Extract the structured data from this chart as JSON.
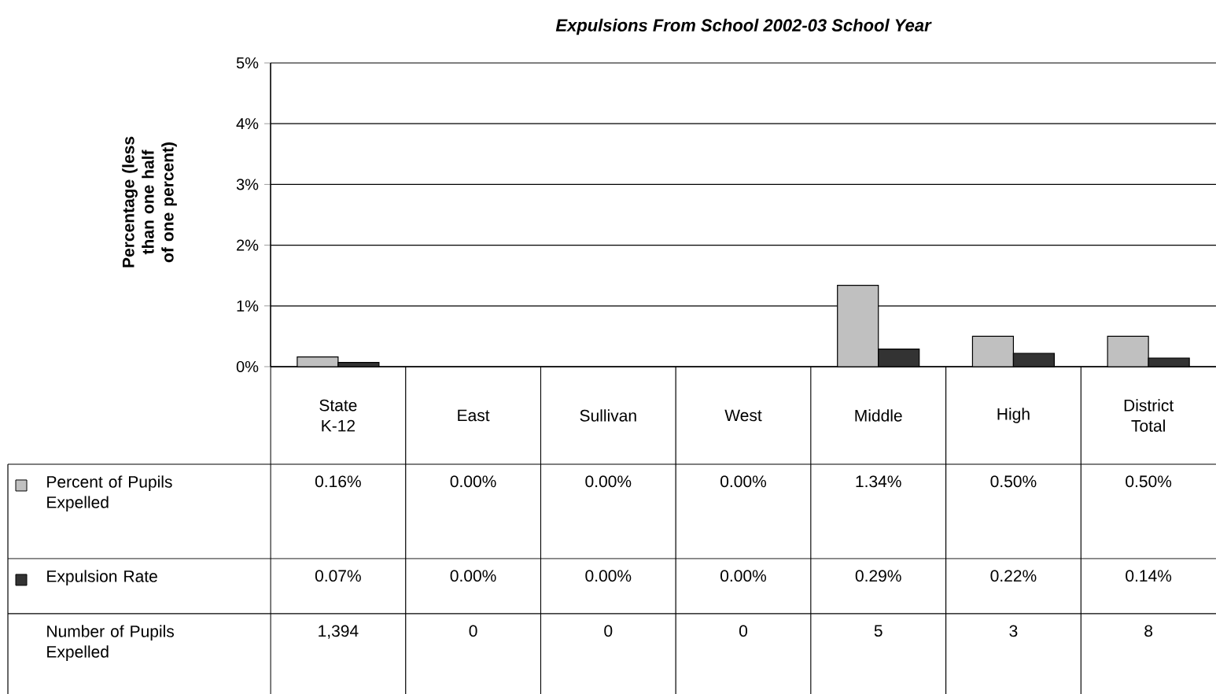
{
  "chart_data": {
    "type": "bar",
    "title": "Expulsions From School 2002-03 School Year",
    "ylabel": "Percentage (less than one half of one percent)",
    "categories": [
      "State K-12",
      "East",
      "Sullivan",
      "West",
      "Middle",
      "High",
      "District Total"
    ],
    "series": [
      {
        "name": "Percent of Pupils Expelled",
        "color": "#c0c0c0",
        "values": [
          0.16,
          0,
          0,
          0,
          1.34,
          0.5,
          0.5
        ],
        "value_labels": [
          "0.16%",
          "0.00%",
          "0.00%",
          "0.00%",
          "1.34%",
          "0.50%",
          "0.50%"
        ]
      },
      {
        "name": "Expulsion Rate",
        "color": "#333333",
        "values": [
          0.07,
          0,
          0,
          0,
          0.29,
          0.22,
          0.14
        ],
        "value_labels": [
          "0.07%",
          "0.00%",
          "0.00%",
          "0.00%",
          "0.29%",
          "0.22%",
          "0.14%"
        ]
      }
    ],
    "annotations": [
      "Number of Pupils Expelled",
      "1,394",
      "0",
      "0",
      "0",
      "5",
      "3",
      "8"
    ],
    "legend": "bottom left",
    "ylim": [
      0,
      5
    ],
    "yticks": [
      {
        "value": 0,
        "label": "0%"
      },
      {
        "value": 1,
        "label": "1%"
      },
      {
        "value": 2,
        "label": "2%"
      },
      {
        "value": 3,
        "label": "3%"
      },
      {
        "value": 4,
        "label": "4%"
      },
      {
        "value": 5,
        "label": "5%"
      }
    ],
    "grid": "y"
  }
}
